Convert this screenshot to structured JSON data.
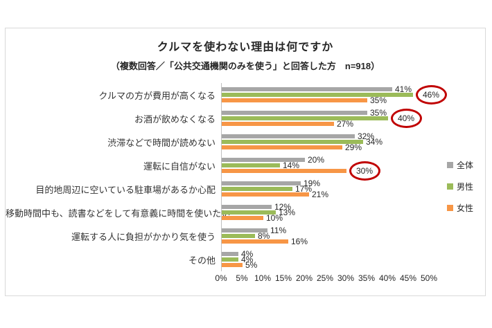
{
  "chart_data": {
    "type": "bar",
    "orientation": "horizontal",
    "title": "クルマを使わない理由は何ですか",
    "subtitle": "（複数回答／「公共交通機関のみを使う」と回答した方　n=918）",
    "categories": [
      "クルマの方が費用が高くなる",
      "お酒が飲めなくなる",
      "渋滞などで時間が読めない",
      "運転に自信がない",
      "目的地周辺に空いている駐車場があるか心配",
      "移動時間中も、読書などをして有意義に時間を使いたい",
      "運転する人に負担がかかり気を使う",
      "その他"
    ],
    "series": [
      {
        "name": "全体",
        "key": "overall",
        "color": "#A6A6A6",
        "values": [
          41,
          35,
          32,
          20,
          19,
          12,
          11,
          4
        ]
      },
      {
        "name": "男性",
        "key": "male",
        "color": "#9BBB59",
        "values": [
          46,
          40,
          34,
          14,
          17,
          13,
          8,
          4
        ]
      },
      {
        "name": "女性",
        "key": "female",
        "color": "#F79646",
        "values": [
          35,
          27,
          29,
          30,
          21,
          10,
          16,
          5
        ]
      }
    ],
    "value_suffix": "%",
    "xlim": [
      0,
      50
    ],
    "x_ticks": [
      "0%",
      "5%",
      "10%",
      "15%",
      "20%",
      "25%",
      "30%",
      "35%",
      "40%",
      "45%",
      "50%"
    ],
    "grid": false,
    "legend_position": "right",
    "annotations": {
      "circled": [
        {
          "series": 1,
          "cat": 0
        },
        {
          "series": 1,
          "cat": 1
        },
        {
          "series": 2,
          "cat": 3
        }
      ],
      "circle_color": "#C00000"
    }
  }
}
